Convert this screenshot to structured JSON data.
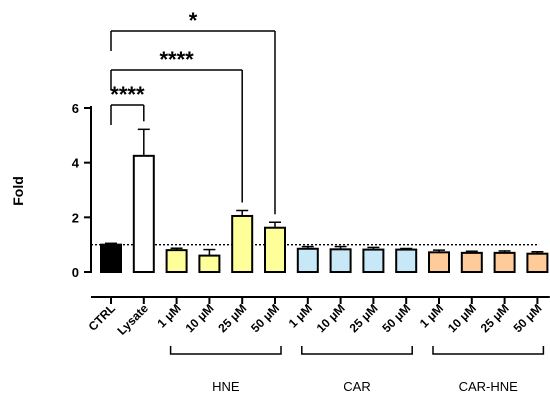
{
  "chart_data": {
    "type": "bar",
    "ylabel": "Fold",
    "ylim": [
      0,
      6
    ],
    "yticks": [
      0,
      2,
      4,
      6
    ],
    "reference_line": 1,
    "categories": [
      "CTRL",
      "Lysate",
      "1 μM",
      "10 μM",
      "25 μM",
      "50 μM",
      "1 μM",
      "10 μM",
      "25 μM",
      "50 μM",
      "1 μM",
      "10 μM",
      "25 μM",
      "50 μM"
    ],
    "values": [
      1.0,
      4.25,
      0.8,
      0.6,
      2.05,
      1.62,
      0.85,
      0.83,
      0.82,
      0.82,
      0.72,
      0.7,
      0.7,
      0.67
    ],
    "errors": [
      0.05,
      0.97,
      0.07,
      0.22,
      0.2,
      0.2,
      0.08,
      0.1,
      0.08,
      0.04,
      0.08,
      0.06,
      0.07,
      0.07
    ],
    "colors": [
      "#000000",
      "#ffffff",
      "#ffff99",
      "#ffff99",
      "#ffff99",
      "#ffff99",
      "#c6e8f7",
      "#c6e8f7",
      "#c6e8f7",
      "#c6e8f7",
      "#ffcc99",
      "#ffcc99",
      "#ffcc99",
      "#ffcc99"
    ],
    "groups": [
      {
        "label": "HNE",
        "from": 2,
        "to": 5
      },
      {
        "label": "CAR",
        "from": 6,
        "to": 9
      },
      {
        "label": "CAR-HNE",
        "from": 10,
        "to": 13
      }
    ],
    "significance": [
      {
        "from": 0,
        "to": 1,
        "label": "****"
      },
      {
        "from": 0,
        "to": 4,
        "label": "****"
      },
      {
        "from": 0,
        "to": 5,
        "label": "*"
      }
    ]
  }
}
